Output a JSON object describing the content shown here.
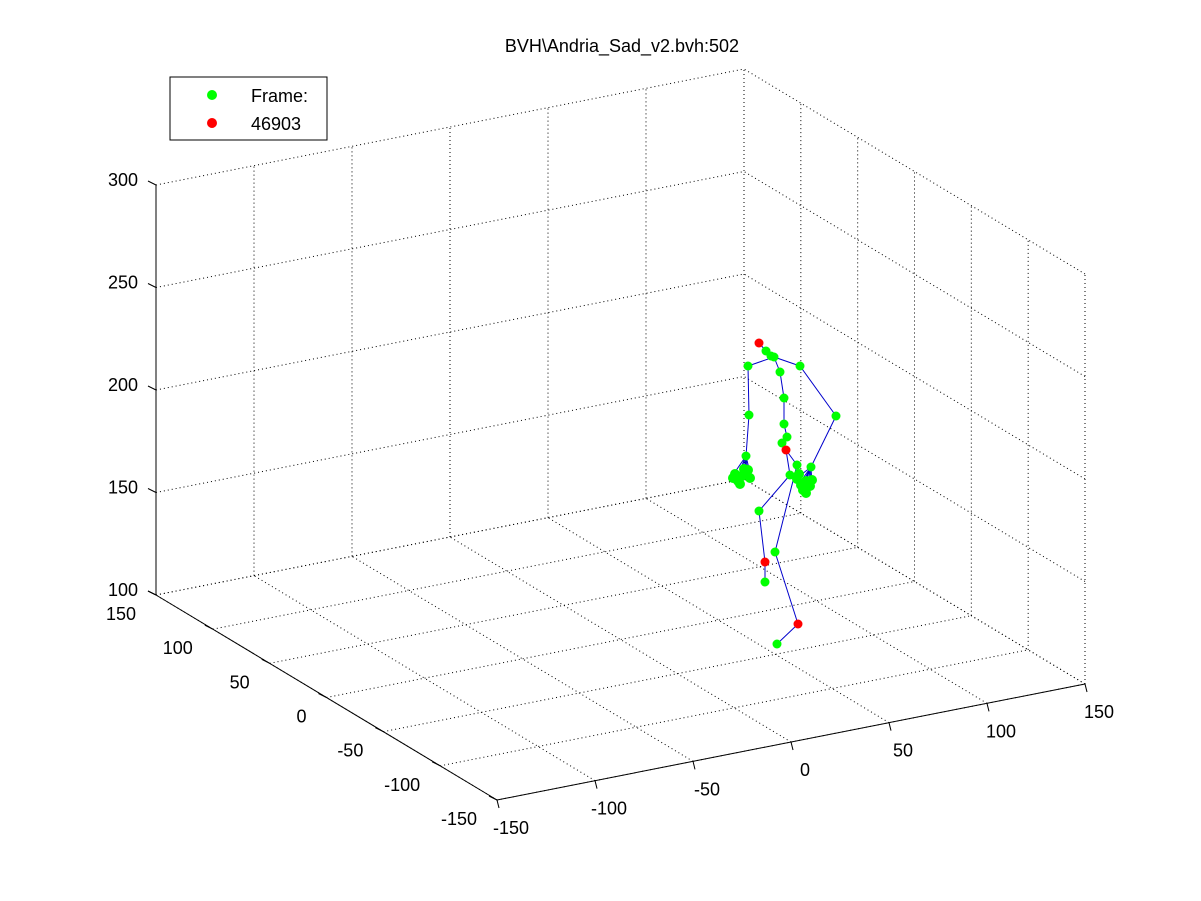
{
  "chart_data": {
    "type": "scatter",
    "title": "BVH\\Andria_Sad_v2.bvh:502",
    "view": "3d",
    "grid": true,
    "legend": {
      "placement": "top-left",
      "entries": [
        {
          "label": "Frame:",
          "color": "#00ff00"
        },
        {
          "label": "46903",
          "color": "#ff0000"
        }
      ]
    },
    "axes": {
      "x": {
        "ticks": [
          "-150",
          "-100",
          "-50",
          "0",
          "50",
          "100",
          "150"
        ],
        "lim": [
          -150,
          150
        ]
      },
      "y": {
        "ticks": [
          "-150",
          "-100",
          "-50",
          "0",
          "50",
          "100",
          "150"
        ],
        "lim": [
          -150,
          150
        ]
      },
      "z": {
        "ticks": [
          "100",
          "150",
          "200",
          "250",
          "300"
        ],
        "lim": [
          100,
          300
        ]
      }
    },
    "colors": {
      "joint": "#00ff00",
      "end_site": "#ff0000",
      "bone": "#0000cc"
    }
  }
}
